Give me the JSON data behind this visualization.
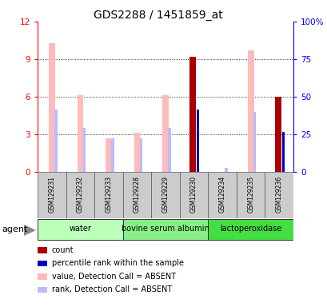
{
  "title": "GDS2288 / 1451859_at",
  "samples": [
    "GSM129231",
    "GSM129232",
    "GSM129233",
    "GSM129228",
    "GSM129229",
    "GSM129230",
    "GSM129234",
    "GSM129235",
    "GSM129236"
  ],
  "groups": [
    {
      "name": "water",
      "color": "#bbffbb",
      "samples_idx": [
        0,
        1,
        2
      ]
    },
    {
      "name": "bovine serum albumin",
      "color": "#88ee88",
      "samples_idx": [
        3,
        4,
        5
      ]
    },
    {
      "name": "lactoperoxidase",
      "color": "#44dd44",
      "samples_idx": [
        6,
        7,
        8
      ]
    }
  ],
  "ylim_left": [
    0,
    12
  ],
  "ylim_right": [
    0,
    100
  ],
  "yticks_left": [
    0,
    3,
    6,
    9,
    12
  ],
  "yticks_right": [
    0,
    25,
    50,
    75,
    100
  ],
  "ytick_labels_right": [
    "0",
    "25",
    "50",
    "75",
    "100%"
  ],
  "value_absent": [
    10.3,
    6.1,
    2.7,
    3.1,
    6.1,
    null,
    null,
    9.7,
    null
  ],
  "rank_absent": [
    5.0,
    3.5,
    2.7,
    2.7,
    3.5,
    null,
    0.35,
    4.8,
    null
  ],
  "count_val": [
    null,
    null,
    null,
    null,
    null,
    9.2,
    null,
    null,
    6.0
  ],
  "rank_present": [
    null,
    null,
    null,
    null,
    null,
    5.0,
    null,
    null,
    3.2
  ],
  "colors": {
    "count": "#aa0000",
    "rank_present": "#0000bb",
    "value_absent": "#ffbbbb",
    "rank_absent": "#bbbbff"
  },
  "agent_label": "agent",
  "legend": [
    {
      "color": "#aa0000",
      "label": "count"
    },
    {
      "color": "#0000bb",
      "label": "percentile rank within the sample"
    },
    {
      "color": "#ffbbbb",
      "label": "value, Detection Call = ABSENT"
    },
    {
      "color": "#bbbbff",
      "label": "rank, Detection Call = ABSENT"
    }
  ]
}
